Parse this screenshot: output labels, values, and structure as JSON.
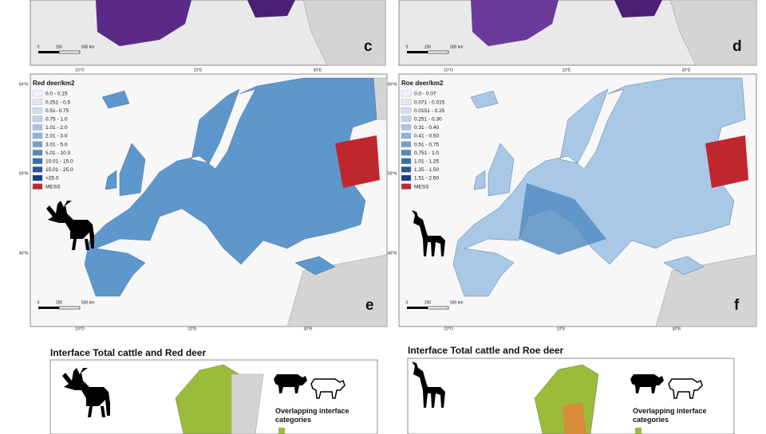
{
  "top_panels": [
    {
      "letter": "c",
      "scale": [
        "0",
        "250",
        "500 km"
      ],
      "lon": [
        "10°O",
        "10°E",
        "30°E"
      ]
    },
    {
      "letter": "d",
      "scale": [
        "0",
        "250",
        "500 km"
      ],
      "lon": [
        "10°O",
        "10°E",
        "30°E"
      ]
    }
  ],
  "map_panels": [
    {
      "letter": "e",
      "legend_title": "Red deer/km2",
      "legend": [
        {
          "label": "0.0 - 0.15",
          "color": "#eef3fa"
        },
        {
          "label": "0.251 - 0.5",
          "color": "#dfe9f5"
        },
        {
          "label": "0.51- 0.75",
          "color": "#cfdff0"
        },
        {
          "label": "0.75 - 1.0",
          "color": "#bcd3ea"
        },
        {
          "label": "1.01 - 2.0",
          "color": "#a6c5e3"
        },
        {
          "label": "2.01 - 3.0",
          "color": "#8db5da"
        },
        {
          "label": "3.01 - 5.0",
          "color": "#6fa1cf"
        },
        {
          "label": "5.01 - 10.0",
          "color": "#4f8ac2"
        },
        {
          "label": "10.01 - 15.0",
          "color": "#3770ad"
        },
        {
          "label": "15.01 - 25.0",
          "color": "#23579a"
        },
        {
          "label": ">25.0",
          "color": "#123e80"
        },
        {
          "label": "MESS",
          "color": "#c0272d"
        }
      ],
      "lat": [
        "60°N",
        "50°N",
        "40°N"
      ],
      "lon": [
        "10°O",
        "10°E",
        "30°E"
      ],
      "scale": [
        "0",
        "250",
        "500 km"
      ]
    },
    {
      "letter": "f",
      "legend_title": "Roe deer/km2",
      "legend": [
        {
          "label": "0.0 - 0.07",
          "color": "#eef3fa"
        },
        {
          "label": "0.071 - 0.015",
          "color": "#dfe9f5"
        },
        {
          "label": "0.0151 - 0.25",
          "color": "#cfdff0"
        },
        {
          "label": "0.251 - 0.30",
          "color": "#bcd3ea"
        },
        {
          "label": "0.31 - 0.40",
          "color": "#a6c5e3"
        },
        {
          "label": "0.41 - 0.50",
          "color": "#8db5da"
        },
        {
          "label": "0.51 - 0.75",
          "color": "#6fa1cf"
        },
        {
          "label": "0.751 - 1.0",
          "color": "#4f8ac2"
        },
        {
          "label": "1.01 - 1.25",
          "color": "#3770ad"
        },
        {
          "label": "1.25 - 1.50",
          "color": "#23579a"
        },
        {
          "label": "1.51 - 2.50",
          "color": "#123e80"
        },
        {
          "label": "MESS",
          "color": "#c0272d"
        }
      ],
      "lat": [
        "60°N",
        "50°N",
        "40°N"
      ],
      "lon": [
        "10°O",
        "10°E",
        "30°E"
      ],
      "scale": [
        "0",
        "250",
        "500 km"
      ]
    }
  ],
  "interface_panels": [
    {
      "title": "Interface Total cattle and Red deer",
      "legend_title": "Overlapping interface categories"
    },
    {
      "title": "Interface Total cattle and Roe deer",
      "legend_title": "Overlapping interface categories"
    }
  ]
}
